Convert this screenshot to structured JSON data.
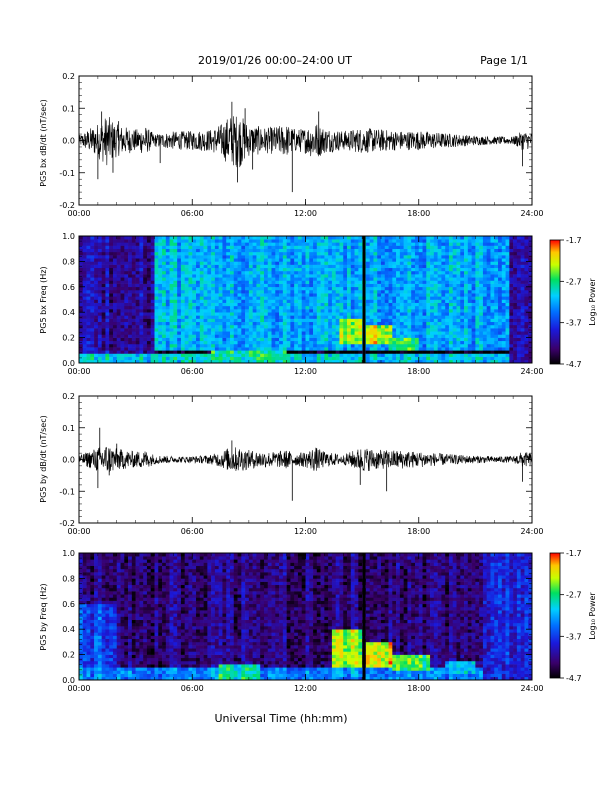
{
  "header": {
    "title": "2019/01/26  00:00–24:00 UT",
    "page": "Page 1/1"
  },
  "footer": {
    "xlabel": "Universal Time (hh:mm)"
  },
  "chart_data": [
    {
      "type": "line",
      "id": "bx-dbdt",
      "ylabel": "PG5 bx dB/dt (nT/sec)",
      "xlim": [
        0,
        24
      ],
      "ylim": [
        -0.2,
        0.2
      ],
      "x_ticks": [
        "00:00",
        "06:00",
        "12:00",
        "18:00",
        "24:00"
      ],
      "y_ticks": [
        "-0.2",
        "-0.1",
        "0.0",
        "0.1",
        "0.2"
      ],
      "envelope": {
        "x_hours": [
          0,
          1,
          1.5,
          2,
          3,
          3.5,
          4,
          5,
          6,
          7,
          7.5,
          8,
          8.5,
          9,
          10,
          10.5,
          11,
          11.5,
          12,
          12.5,
          13,
          14,
          15,
          16,
          17,
          18,
          19,
          20,
          21,
          22,
          23,
          23.5,
          24
        ],
        "amplitude": [
          0.015,
          0.055,
          0.08,
          0.05,
          0.035,
          0.045,
          0.02,
          0.028,
          0.03,
          0.035,
          0.05,
          0.08,
          0.085,
          0.05,
          0.04,
          0.045,
          0.05,
          0.035,
          0.04,
          0.06,
          0.04,
          0.03,
          0.04,
          0.035,
          0.03,
          0.03,
          0.025,
          0.02,
          0.015,
          0.012,
          0.012,
          0.03,
          0.025
        ]
      },
      "spikes": [
        {
          "x": 1.0,
          "y": -0.12
        },
        {
          "x": 1.2,
          "y": 0.09
        },
        {
          "x": 1.8,
          "y": -0.1
        },
        {
          "x": 2.1,
          "y": 0.06
        },
        {
          "x": 4.3,
          "y": -0.07
        },
        {
          "x": 8.1,
          "y": 0.12
        },
        {
          "x": 8.4,
          "y": -0.13
        },
        {
          "x": 8.8,
          "y": 0.1
        },
        {
          "x": 9.2,
          "y": -0.09
        },
        {
          "x": 11.3,
          "y": -0.16
        },
        {
          "x": 12.7,
          "y": 0.09
        },
        {
          "x": 23.5,
          "y": -0.08
        }
      ]
    },
    {
      "type": "heatmap",
      "id": "bx-spec",
      "ylabel": "PG5 bx Freq (Hz)",
      "xlim": [
        0,
        24
      ],
      "ylim": [
        0,
        1.0
      ],
      "x_ticks": [
        "00:00",
        "06:00",
        "12:00",
        "18:00",
        "24:00"
      ],
      "y_ticks": [
        "0.0",
        "0.2",
        "0.4",
        "0.6",
        "0.8",
        "1.0"
      ],
      "colorbar": {
        "label": "Log₁₀ Power",
        "min": -4.7,
        "max": -1.7,
        "ticks": [
          "-1.7",
          "-2.7",
          "-3.7",
          "-4.7"
        ]
      },
      "data_gap_hours": [
        15.1
      ],
      "regions": [
        {
          "x": [
            0,
            4
          ],
          "y": [
            0,
            1
          ],
          "level": 0.2
        },
        {
          "x": [
            4,
            22.7
          ],
          "y": [
            0.1,
            1
          ],
          "level": 0.5
        },
        {
          "x": [
            0,
            24
          ],
          "y": [
            0,
            0.08
          ],
          "level": 0.55
        },
        {
          "x": [
            7,
            11
          ],
          "y": [
            0,
            0.1
          ],
          "level": 0.62
        },
        {
          "x": [
            13.8,
            15
          ],
          "y": [
            0.15,
            0.35
          ],
          "level": 0.78
        },
        {
          "x": [
            15.2,
            16.5
          ],
          "y": [
            0.15,
            0.3
          ],
          "level": 0.82
        },
        {
          "x": [
            16.5,
            18
          ],
          "y": [
            0.1,
            0.2
          ],
          "level": 0.7
        },
        {
          "x": [
            22.8,
            24
          ],
          "y": [
            0,
            1
          ],
          "level": 0.22
        }
      ]
    },
    {
      "type": "line",
      "id": "by-dbdt",
      "ylabel": "PG5 by dB/dt (nT/sec)",
      "xlim": [
        0,
        24
      ],
      "ylim": [
        -0.2,
        0.2
      ],
      "x_ticks": [
        "00:00",
        "06:00",
        "12:00",
        "18:00",
        "24:00"
      ],
      "y_ticks": [
        "-0.2",
        "-0.1",
        "0.0",
        "0.1",
        "0.2"
      ],
      "envelope": {
        "x_hours": [
          0,
          1,
          1.5,
          2,
          3,
          3.5,
          4,
          5,
          6,
          7,
          7.5,
          8,
          8.5,
          9,
          10,
          10.5,
          11,
          11.5,
          12,
          12.5,
          13,
          14,
          15,
          16,
          17,
          18,
          19,
          20,
          21,
          22,
          23,
          23.5,
          24
        ],
        "amplitude": [
          0.012,
          0.04,
          0.05,
          0.035,
          0.025,
          0.03,
          0.015,
          0.01,
          0.01,
          0.015,
          0.025,
          0.04,
          0.04,
          0.03,
          0.025,
          0.025,
          0.03,
          0.02,
          0.025,
          0.04,
          0.025,
          0.015,
          0.04,
          0.03,
          0.03,
          0.025,
          0.02,
          0.015,
          0.012,
          0.01,
          0.01,
          0.025,
          0.02
        ]
      },
      "spikes": [
        {
          "x": 1.0,
          "y": -0.09
        },
        {
          "x": 1.1,
          "y": 0.1
        },
        {
          "x": 1.6,
          "y": -0.05
        },
        {
          "x": 2.0,
          "y": 0.05
        },
        {
          "x": 8.1,
          "y": 0.06
        },
        {
          "x": 11.3,
          "y": -0.13
        },
        {
          "x": 14.9,
          "y": -0.08
        },
        {
          "x": 16.3,
          "y": -0.1
        },
        {
          "x": 23.5,
          "y": -0.07
        }
      ]
    },
    {
      "type": "heatmap",
      "id": "by-spec",
      "ylabel": "PG5 by Freq (Hz)",
      "xlim": [
        0,
        24
      ],
      "ylim": [
        0,
        1.0
      ],
      "x_ticks": [
        "00:00",
        "06:00",
        "12:00",
        "18:00",
        "24:00"
      ],
      "y_ticks": [
        "0.0",
        "0.2",
        "0.4",
        "0.6",
        "0.8",
        "1.0"
      ],
      "colorbar": {
        "label": "Log₁₀ Power",
        "min": -4.7,
        "max": -1.7,
        "ticks": [
          "-1.7",
          "-2.7",
          "-3.7",
          "-4.7"
        ]
      },
      "data_gap_hours": [
        15.1
      ],
      "regions": [
        {
          "x": [
            0,
            24
          ],
          "y": [
            0,
            1
          ],
          "level": 0.15
        },
        {
          "x": [
            0,
            2
          ],
          "y": [
            0,
            0.6
          ],
          "level": 0.35
        },
        {
          "x": [
            0,
            24
          ],
          "y": [
            0,
            0.1
          ],
          "level": 0.45
        },
        {
          "x": [
            7.5,
            9.5
          ],
          "y": [
            0,
            0.12
          ],
          "level": 0.62
        },
        {
          "x": [
            13.5,
            15
          ],
          "y": [
            0.1,
            0.4
          ],
          "level": 0.78
        },
        {
          "x": [
            15.2,
            16.6
          ],
          "y": [
            0.1,
            0.3
          ],
          "level": 0.85
        },
        {
          "x": [
            16.6,
            18.5
          ],
          "y": [
            0.08,
            0.2
          ],
          "level": 0.72
        },
        {
          "x": [
            19.5,
            21
          ],
          "y": [
            0.05,
            0.15
          ],
          "level": 0.55
        },
        {
          "x": [
            21.5,
            24
          ],
          "y": [
            0,
            1
          ],
          "level": 0.3
        }
      ]
    }
  ]
}
